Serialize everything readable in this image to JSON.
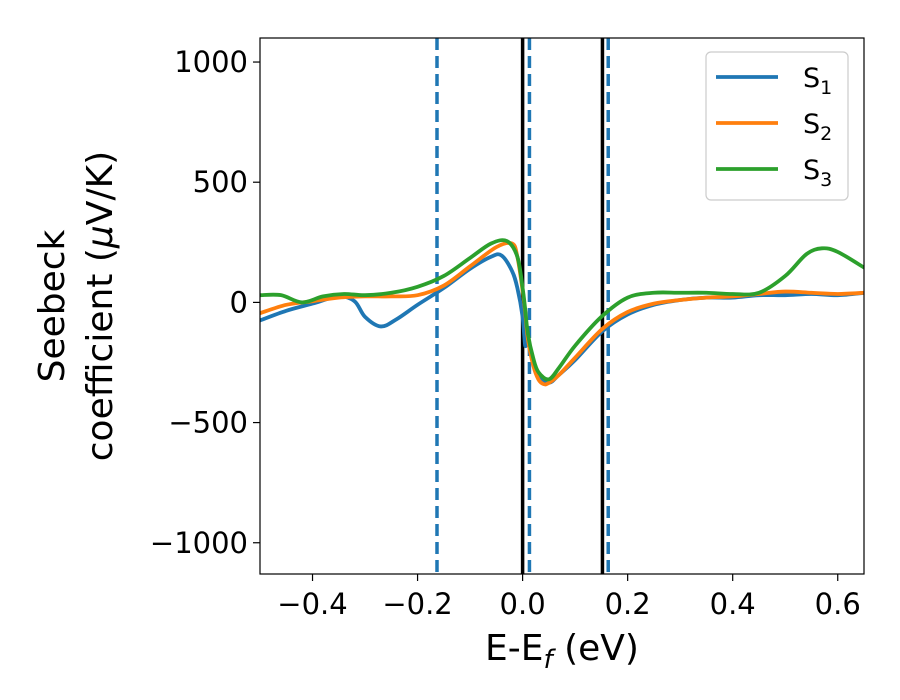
{
  "chart_data": {
    "type": "line",
    "xlabel": {
      "main": "E-E",
      "sub": "f",
      "tail": " (eV)"
    },
    "ylabel": {
      "line1": "Seebeck",
      "line2_pre": "coefficient  (",
      "mu": "μ",
      "line2_post": "V/K)"
    },
    "xlim": [
      -0.5,
      0.65
    ],
    "ylim": [
      -1130,
      1100
    ],
    "xticks": [
      -0.4,
      -0.2,
      0.0,
      0.2,
      0.4,
      0.6
    ],
    "xtick_labels": [
      "−0.4",
      "−0.2",
      "0.0",
      "0.2",
      "0.4",
      "0.6"
    ],
    "yticks": [
      1000,
      500,
      0,
      -500,
      -1000
    ],
    "ytick_labels": [
      "1000",
      "500",
      "0",
      "−500",
      "−1000"
    ],
    "grid": false,
    "legend_position": "top-right",
    "vlines_solid": {
      "color": "#000000",
      "x": [
        0.0,
        0.152
      ]
    },
    "vlines_dashed": {
      "color": "#1f77b4",
      "x": [
        -0.163,
        0.013,
        0.163
      ]
    },
    "series": [
      {
        "name_base": "S",
        "name_sub": "1",
        "color": "#1f77b4",
        "x": [
          -0.5,
          -0.45,
          -0.4,
          -0.35,
          -0.32,
          -0.3,
          -0.27,
          -0.24,
          -0.2,
          -0.15,
          -0.1,
          -0.06,
          -0.04,
          -0.02,
          -0.01,
          0.0,
          0.005,
          0.01,
          0.02,
          0.03,
          0.05,
          0.07,
          0.1,
          0.152,
          0.2,
          0.25,
          0.3,
          0.35,
          0.4,
          0.45,
          0.5,
          0.55,
          0.6,
          0.65
        ],
        "y": [
          -75,
          -35,
          -5,
          25,
          5,
          -60,
          -100,
          -70,
          -10,
          60,
          140,
          190,
          195,
          130,
          60,
          -60,
          -180,
          -150,
          -250,
          -310,
          -335,
          -300,
          -240,
          -120,
          -50,
          -10,
          10,
          20,
          20,
          30,
          30,
          35,
          30,
          40
        ]
      },
      {
        "name_base": "S",
        "name_sub": "2",
        "color": "#ff7f0e",
        "x": [
          -0.5,
          -0.45,
          -0.4,
          -0.35,
          -0.3,
          -0.25,
          -0.2,
          -0.15,
          -0.1,
          -0.05,
          -0.02,
          -0.01,
          0.0,
          0.005,
          0.01,
          0.02,
          0.03,
          0.04,
          0.05,
          0.07,
          0.1,
          0.152,
          0.2,
          0.25,
          0.3,
          0.35,
          0.4,
          0.45,
          0.5,
          0.55,
          0.6,
          0.65
        ],
        "y": [
          -45,
          -10,
          5,
          20,
          25,
          25,
          30,
          70,
          150,
          230,
          245,
          190,
          50,
          -40,
          -150,
          -260,
          -320,
          -340,
          -335,
          -300,
          -230,
          -110,
          -40,
          -5,
          10,
          20,
          25,
          35,
          45,
          40,
          35,
          40
        ]
      },
      {
        "name_base": "S",
        "name_sub": "3",
        "color": "#2ca02c",
        "x": [
          -0.5,
          -0.46,
          -0.42,
          -0.38,
          -0.34,
          -0.3,
          -0.25,
          -0.2,
          -0.15,
          -0.1,
          -0.06,
          -0.03,
          -0.01,
          0.0,
          0.005,
          0.01,
          0.02,
          0.03,
          0.05,
          0.07,
          0.1,
          0.15,
          0.2,
          0.25,
          0.3,
          0.35,
          0.4,
          0.45,
          0.5,
          0.54,
          0.57,
          0.6,
          0.65
        ],
        "y": [
          30,
          30,
          0,
          25,
          35,
          30,
          40,
          65,
          110,
          185,
          245,
          255,
          190,
          60,
          -30,
          -130,
          -230,
          -290,
          -320,
          -270,
          -180,
          -60,
          20,
          40,
          40,
          40,
          35,
          40,
          110,
          200,
          225,
          210,
          145
        ]
      }
    ]
  }
}
